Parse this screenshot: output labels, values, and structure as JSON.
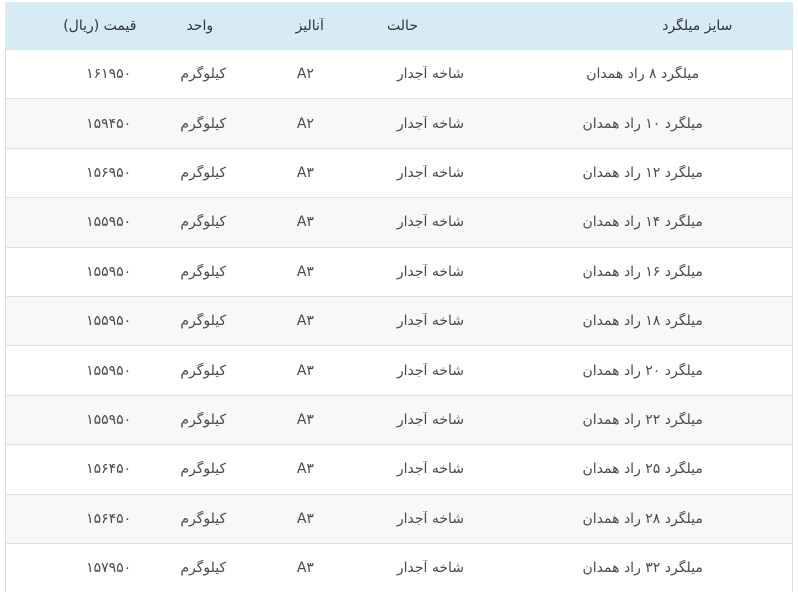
{
  "theme": {
    "header_bg": "#d7ebf4",
    "row_alt_bg": "#f8f8f8",
    "border_color": "#e0e0e0",
    "header_text": "#333333",
    "cell_text": "#4a4a4a"
  },
  "table": {
    "columns": [
      {
        "key": "size",
        "label": "سایز میلگرد"
      },
      {
        "key": "condition",
        "label": "حالت"
      },
      {
        "key": "analysis",
        "label": "آنالیز"
      },
      {
        "key": "unit",
        "label": "واحد"
      },
      {
        "key": "price",
        "label": "قیمت (ریال)"
      }
    ],
    "rows": [
      {
        "size": "میلگرد ۸ راد همدان",
        "condition": "شاخه آجدار",
        "analysis": "A۲",
        "unit": "کیلوگرم",
        "price": "۱۶۱۹۵۰"
      },
      {
        "size": "میلگرد ۱۰ راد همدان",
        "condition": "شاخه آجدار",
        "analysis": "A۲",
        "unit": "کیلوگرم",
        "price": "۱۵۹۴۵۰"
      },
      {
        "size": "میلگرد ۱۲ راد همدان",
        "condition": "شاخه آجدار",
        "analysis": "A۳",
        "unit": "کیلوگرم",
        "price": "۱۵۶۹۵۰"
      },
      {
        "size": "میلگرد ۱۴ راد همدان",
        "condition": "شاخه آجدار",
        "analysis": "A۳",
        "unit": "کیلوگرم",
        "price": "۱۵۵۹۵۰"
      },
      {
        "size": "میلگرد ۱۶ راد همدان",
        "condition": "شاخه آجدار",
        "analysis": "A۳",
        "unit": "کیلوگرم",
        "price": "۱۵۵۹۵۰"
      },
      {
        "size": "میلگرد ۱۸ راد همدان",
        "condition": "شاخه آجدار",
        "analysis": "A۳",
        "unit": "کیلوگرم",
        "price": "۱۵۵۹۵۰"
      },
      {
        "size": "میلگرد ۲۰ راد همدان",
        "condition": "شاخه آجدار",
        "analysis": "A۳",
        "unit": "کیلوگرم",
        "price": "۱۵۵۹۵۰"
      },
      {
        "size": "میلگرد ۲۲ راد همدان",
        "condition": "شاخه آجدار",
        "analysis": "A۳",
        "unit": "کیلوگرم",
        "price": "۱۵۵۹۵۰"
      },
      {
        "size": "میلگرد ۲۵ راد همدان",
        "condition": "شاخه آجدار",
        "analysis": "A۳",
        "unit": "کیلوگرم",
        "price": "۱۵۶۴۵۰"
      },
      {
        "size": "میلگرد ۲۸ راد همدان",
        "condition": "شاخه آجدار",
        "analysis": "A۳",
        "unit": "کیلوگرم",
        "price": "۱۵۶۴۵۰"
      },
      {
        "size": "میلگرد ۳۲ راد همدان",
        "condition": "شاخه آجدار",
        "analysis": "A۳",
        "unit": "کیلوگرم",
        "price": "۱۵۷۹۵۰"
      }
    ]
  }
}
